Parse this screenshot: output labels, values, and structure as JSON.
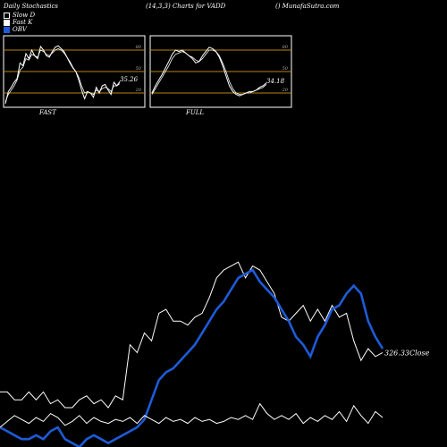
{
  "header": {
    "left": "Daily Stochastics",
    "center": "(14,3,3) Charts for VADD",
    "right": "() MunafaSutra.com"
  },
  "legend": [
    {
      "label": "Slow  D",
      "color": "#ffffff",
      "filled": false
    },
    {
      "label": "Fast K",
      "color": "#ffffff",
      "filled": true
    },
    {
      "label": "OBV",
      "color": "#1e5bd8",
      "filled": true
    }
  ],
  "chart_data": [
    {
      "type": "line",
      "label": "FAST",
      "ylim": [
        0,
        100
      ],
      "levels": [
        20,
        50,
        80
      ],
      "last_value": "35.26",
      "series": [
        {
          "values": [
            5,
            22,
            28,
            35,
            40,
            62,
            58,
            75,
            68,
            80,
            72,
            68,
            85,
            80,
            72,
            70,
            78,
            84,
            86,
            82,
            78,
            70,
            62,
            55,
            50,
            38,
            24,
            12,
            22,
            20,
            14,
            28,
            20,
            30,
            32,
            24,
            18,
            35,
            30,
            36
          ]
        },
        {
          "values": [
            8,
            18,
            24,
            30,
            38,
            52,
            56,
            68,
            66,
            74,
            72,
            70,
            80,
            78,
            74,
            72,
            76,
            80,
            82,
            80,
            76,
            70,
            64,
            56,
            50,
            42,
            30,
            20,
            22,
            20,
            18,
            24,
            22,
            26,
            28,
            26,
            22,
            30,
            30,
            33
          ]
        }
      ]
    },
    {
      "type": "line",
      "label": "FULL",
      "ylim": [
        0,
        100
      ],
      "levels": [
        20,
        50,
        80
      ],
      "last_value": "34.18",
      "series": [
        {
          "values": [
            20,
            30,
            38,
            46,
            55,
            64,
            74,
            80,
            78,
            80,
            76,
            72,
            68,
            62,
            64,
            72,
            78,
            84,
            82,
            78,
            70,
            58,
            44,
            30,
            22,
            18,
            16,
            18,
            20,
            22,
            22,
            24,
            28,
            30,
            34
          ]
        },
        {
          "values": [
            18,
            26,
            34,
            42,
            50,
            58,
            68,
            74,
            76,
            78,
            76,
            72,
            70,
            66,
            64,
            68,
            74,
            80,
            80,
            78,
            72,
            62,
            50,
            36,
            26,
            20,
            18,
            18,
            20,
            20,
            22,
            24,
            26,
            28,
            32
          ]
        }
      ]
    },
    {
      "type": "line",
      "ylim": [
        0,
        100
      ],
      "close_label": "326.33Close",
      "series": [
        {
          "color": "#ffffff",
          "values": [
            28,
            28,
            24,
            24,
            28,
            24,
            28,
            22,
            24,
            20,
            20,
            24,
            26,
            22,
            24,
            20,
            26,
            24,
            52,
            48,
            58,
            54,
            68,
            70,
            64,
            64,
            62,
            66,
            68,
            76,
            86,
            90,
            92,
            94,
            86,
            92,
            90,
            84,
            78,
            66,
            64,
            68,
            72,
            64,
            70,
            64,
            72,
            66,
            68,
            54,
            44,
            50,
            46,
            48
          ]
        },
        {
          "color": "#1e5bd8",
          "values": [
            10,
            8,
            6,
            4,
            4,
            6,
            4,
            8,
            10,
            4,
            2,
            0,
            4,
            6,
            4,
            2,
            4,
            6,
            8,
            10,
            14,
            24,
            34,
            38,
            40,
            44,
            48,
            52,
            58,
            64,
            70,
            74,
            80,
            86,
            88,
            90,
            84,
            80,
            76,
            70,
            64,
            56,
            52,
            46,
            56,
            62,
            70,
            72,
            78,
            82,
            78,
            64,
            56,
            50
          ]
        },
        {
          "color": "#ffffff",
          "values": [
            10,
            13,
            16,
            14,
            12,
            15,
            13,
            17,
            15,
            11,
            13,
            16,
            12,
            15,
            13,
            12,
            14,
            13,
            15,
            12,
            16,
            14,
            12,
            15,
            13,
            14,
            12,
            15,
            13,
            14,
            12,
            13,
            15,
            14,
            16,
            14,
            22,
            17,
            14,
            16,
            14,
            17,
            12,
            15,
            13,
            16,
            14,
            18,
            13,
            21,
            16,
            12,
            18,
            15
          ]
        }
      ]
    }
  ]
}
